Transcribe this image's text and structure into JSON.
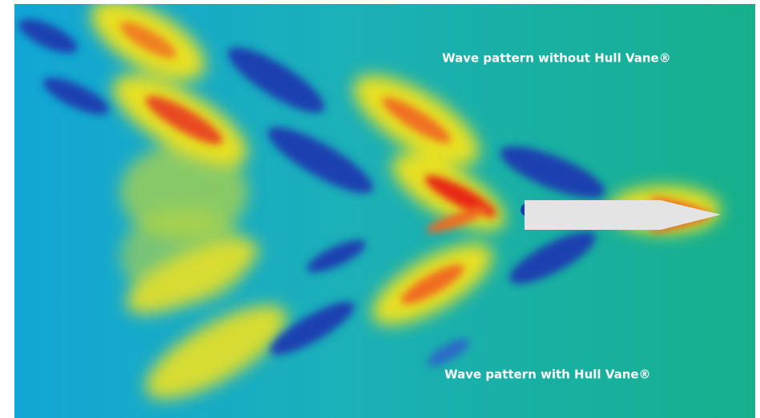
{
  "labels": {
    "top": "Wave pattern without Hull Vane®",
    "bottom": "Wave pattern with Hull Vane®"
  }
}
